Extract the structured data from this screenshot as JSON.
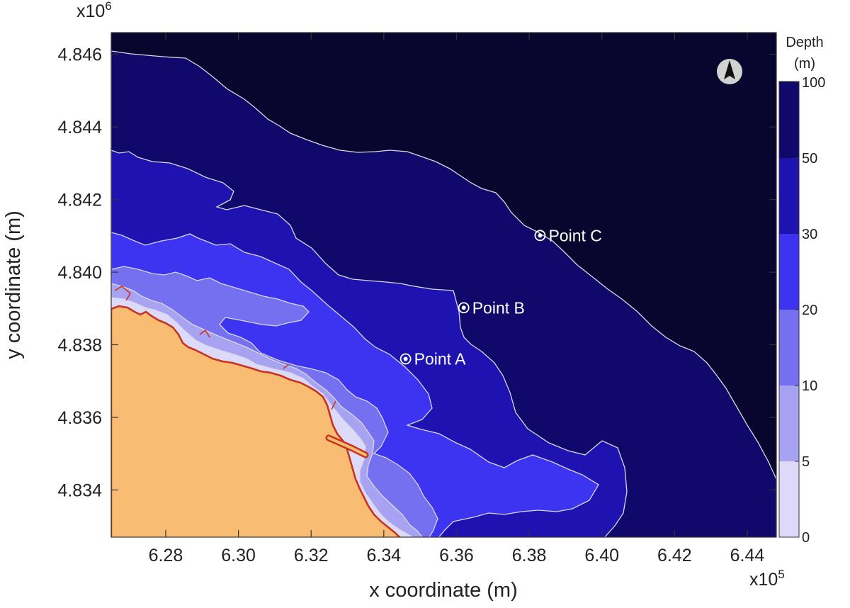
{
  "chart_data": {
    "type": "heatmap",
    "xlabel": "x coordinate (m)",
    "ylabel": "y coordinate (m)",
    "x_multiplier": "x10",
    "x_exponent": "5",
    "y_multiplier": "x10",
    "y_exponent": "6",
    "xlim": [
      6.265,
      6.448
    ],
    "ylim": [
      4.8327,
      4.8466
    ],
    "x_ticks": [
      6.28,
      6.3,
      6.32,
      6.34,
      6.36,
      6.38,
      6.4,
      6.42,
      6.44
    ],
    "y_ticks": [
      4.834,
      4.836,
      4.838,
      4.84,
      4.842,
      4.844,
      4.846
    ],
    "x_tick_labels": [
      "6.28",
      "6.30",
      "6.32",
      "6.34",
      "6.36",
      "6.38",
      "6.40",
      "6.42",
      "6.44"
    ],
    "y_tick_labels": [
      "4.834",
      "4.836",
      "4.838",
      "4.840",
      "4.842",
      "4.844",
      "4.846"
    ],
    "colorbar": {
      "title_line1": "Depth",
      "title_line2": "(m)",
      "levels": [
        0,
        5,
        10,
        20,
        30,
        50,
        100
      ],
      "level_labels": [
        "0",
        "5",
        "10",
        "20",
        "30",
        "50",
        "100"
      ],
      "colors": [
        "#dcdaf8",
        "#a7a3f2",
        "#7470f0",
        "#3c34f0",
        "#1e12b0",
        "#10086a",
        "#08062e"
      ]
    },
    "land_color": "#f8bd72",
    "coastline_color": "#c8321e",
    "contour_line_color": "#d8d8e6",
    "points": [
      {
        "label": "Point A",
        "x": 6.346,
        "y": 4.83761
      },
      {
        "label": "Point B",
        "x": 6.362,
        "y": 4.83902
      },
      {
        "label": "Point C",
        "x": 6.383,
        "y": 4.84101
      }
    ],
    "north_arrow": "north-arrow-icon"
  }
}
